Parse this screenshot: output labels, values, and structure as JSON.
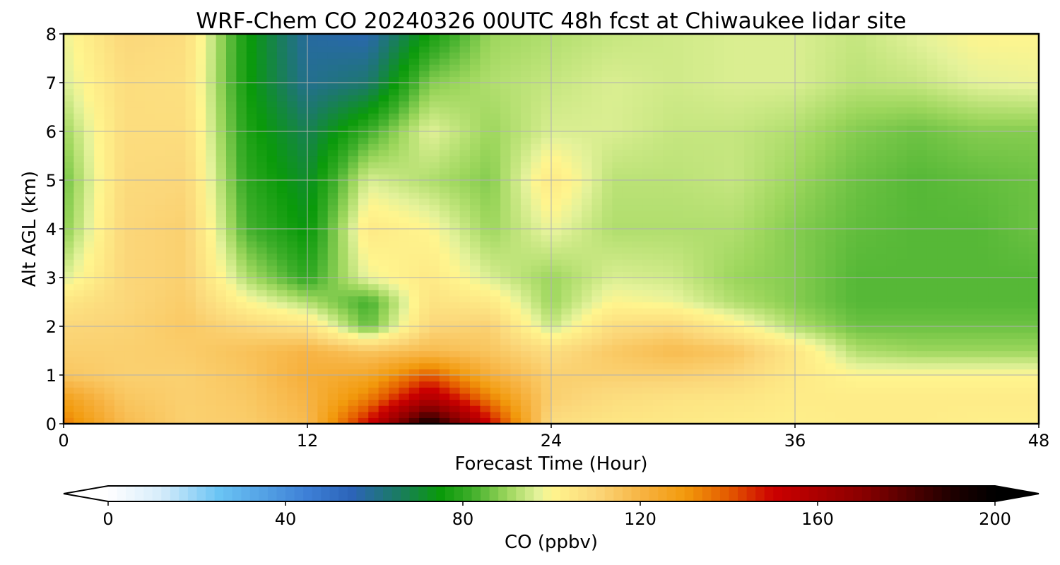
{
  "chart_data": {
    "type": "heatmap",
    "title": "WRF-Chem CO  20240326 00UTC 48h fcst at Chiwaukee lidar site",
    "xlabel": "Forecast Time (Hour)",
    "ylabel": "Alt AGL (km)",
    "xlim": [
      0,
      48
    ],
    "ylim": [
      0,
      8
    ],
    "x_ticks": [
      "0",
      "12",
      "24",
      "36",
      "48"
    ],
    "y_ticks": [
      "0",
      "1",
      "2",
      "3",
      "4",
      "5",
      "6",
      "7",
      "8"
    ],
    "grid": true,
    "x": [
      0,
      3,
      6,
      9,
      12,
      15,
      18,
      21,
      24,
      27,
      30,
      33,
      36,
      39,
      42,
      45,
      48
    ],
    "y": [
      0,
      0.5,
      1,
      1.5,
      2,
      2.5,
      3,
      4,
      5,
      6,
      7,
      8
    ],
    "z": [
      [
        135,
        118,
        112,
        113,
        118,
        150,
        195,
        150,
        108,
        105,
        104,
        103,
        102,
        103,
        103,
        102,
        102
      ],
      [
        128,
        115,
        112,
        114,
        120,
        135,
        160,
        135,
        112,
        108,
        106,
        105,
        103,
        103,
        103,
        103,
        103
      ],
      [
        115,
        112,
        112,
        115,
        122,
        125,
        140,
        122,
        112,
        112,
        112,
        110,
        104,
        100,
        100,
        100,
        100
      ],
      [
        112,
        112,
        113,
        116,
        120,
        115,
        118,
        115,
        108,
        114,
        118,
        115,
        105,
        92,
        90,
        90,
        90
      ],
      [
        110,
        111,
        114,
        110,
        106,
        85,
        110,
        112,
        94,
        108,
        110,
        102,
        92,
        86,
        86,
        86,
        86
      ],
      [
        105,
        110,
        113,
        100,
        92,
        82,
        106,
        104,
        90,
        100,
        98,
        92,
        88,
        84,
        84,
        84,
        84
      ],
      [
        96,
        110,
        112,
        92,
        80,
        98,
        104,
        96,
        90,
        96,
        95,
        90,
        88,
        84,
        84,
        84,
        84
      ],
      [
        88,
        110,
        112,
        83,
        74,
        104,
        100,
        90,
        98,
        92,
        92,
        92,
        88,
        85,
        84,
        84,
        86
      ],
      [
        86,
        109,
        110,
        80,
        71,
        96,
        92,
        88,
        104,
        93,
        93,
        94,
        90,
        86,
        84,
        85,
        86
      ],
      [
        90,
        108,
        108,
        78,
        67,
        82,
        97,
        90,
        96,
        96,
        94,
        94,
        92,
        88,
        86,
        88,
        88
      ],
      [
        96,
        108,
        107,
        76,
        60,
        64,
        88,
        92,
        94,
        96,
        95,
        96,
        96,
        93,
        94,
        97,
        98
      ],
      [
        98,
        110,
        108,
        76,
        58,
        56,
        76,
        90,
        92,
        94,
        95,
        96,
        96,
        94,
        97,
        100,
        100
      ]
    ],
    "colorbar": {
      "label": "CO  (ppbv)",
      "min": 0,
      "max": 200,
      "ticks": [
        "0",
        "40",
        "80",
        "120",
        "160",
        "200"
      ],
      "extend": "both",
      "placement": "bottom",
      "colors": [
        {
          "v": 0,
          "c": "#ffffff"
        },
        {
          "v": 12,
          "c": "#d6ecfb"
        },
        {
          "v": 25,
          "c": "#6ac4f4"
        },
        {
          "v": 45,
          "c": "#3d7fd6"
        },
        {
          "v": 55,
          "c": "#2c64b8"
        },
        {
          "v": 65,
          "c": "#1b7a66"
        },
        {
          "v": 75,
          "c": "#0a9a0a"
        },
        {
          "v": 82,
          "c": "#3eae2a"
        },
        {
          "v": 90,
          "c": "#9cd65c"
        },
        {
          "v": 97,
          "c": "#e4f29a"
        },
        {
          "v": 100,
          "c": "#fff58e"
        },
        {
          "v": 110,
          "c": "#fbd77a"
        },
        {
          "v": 120,
          "c": "#f7b444"
        },
        {
          "v": 130,
          "c": "#f29a0c"
        },
        {
          "v": 140,
          "c": "#e45a00"
        },
        {
          "v": 150,
          "c": "#cc0000"
        },
        {
          "v": 170,
          "c": "#8a0000"
        },
        {
          "v": 190,
          "c": "#200000"
        },
        {
          "v": 200,
          "c": "#000000"
        }
      ]
    }
  }
}
